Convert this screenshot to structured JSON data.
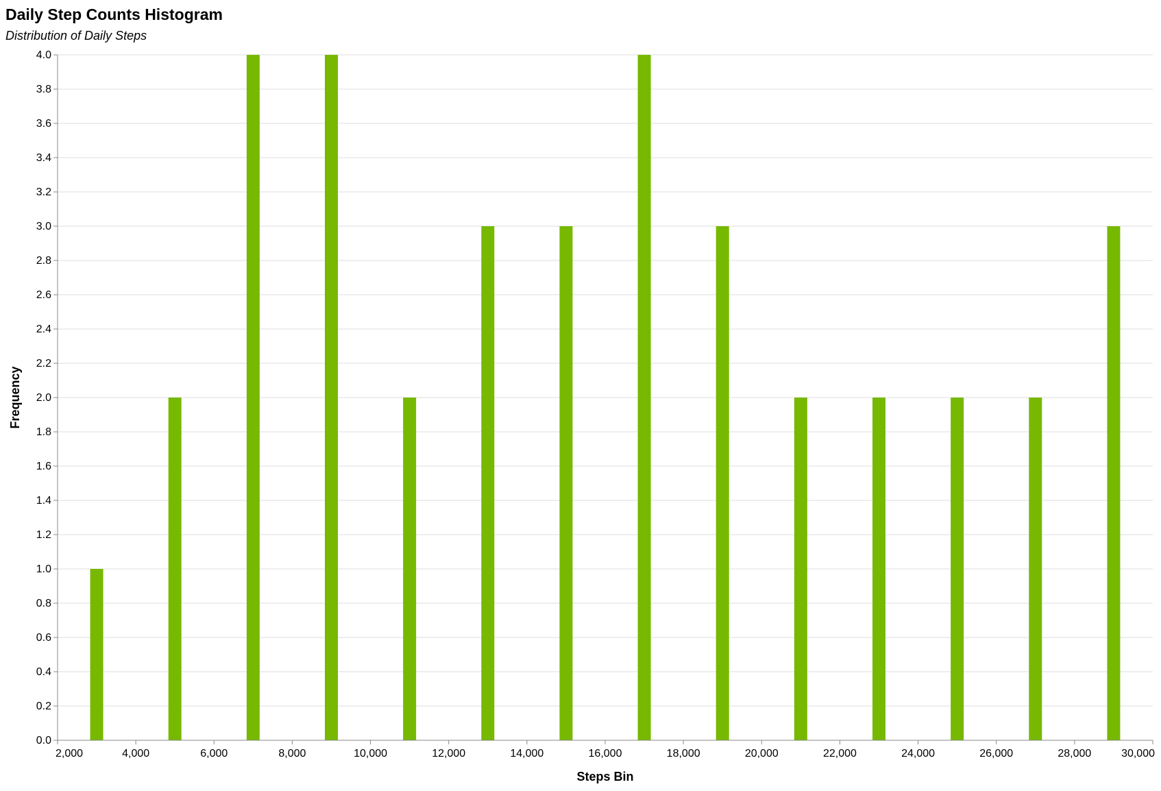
{
  "chart_data": {
    "type": "bar",
    "title": "Daily Step Counts Histogram",
    "subtitle": "Distribution of Daily Steps",
    "xlabel": "Steps Bin",
    "ylabel": "Frequency",
    "xlim": [
      2000,
      30000
    ],
    "ylim": [
      0,
      4
    ],
    "grid": true,
    "bar_color": "#76b900",
    "x_ticks": [
      2000,
      4000,
      6000,
      8000,
      10000,
      12000,
      14000,
      16000,
      18000,
      20000,
      22000,
      24000,
      26000,
      28000,
      30000
    ],
    "x_tick_labels": [
      "2,000",
      "4,000",
      "6,000",
      "8,000",
      "10,000",
      "12,000",
      "14,000",
      "16,000",
      "18,000",
      "20,000",
      "22,000",
      "24,000",
      "26,000",
      "28,000",
      "30,000"
    ],
    "y_ticks": [
      0,
      0.2,
      0.4,
      0.6,
      0.8,
      1.0,
      1.2,
      1.4,
      1.6,
      1.8,
      2.0,
      2.2,
      2.4,
      2.6,
      2.8,
      3.0,
      3.2,
      3.4,
      3.6,
      3.8,
      4.0
    ],
    "y_tick_labels": [
      "0.0",
      "0.2",
      "0.4",
      "0.6",
      "0.8",
      "1.0",
      "1.2",
      "1.4",
      "1.6",
      "1.8",
      "2.0",
      "2.2",
      "2.4",
      "2.6",
      "2.8",
      "3.0",
      "3.2",
      "3.4",
      "3.6",
      "3.8",
      "4.0"
    ],
    "bars": [
      {
        "x": 3000,
        "value": 1
      },
      {
        "x": 5000,
        "value": 2
      },
      {
        "x": 7000,
        "value": 4
      },
      {
        "x": 9000,
        "value": 4
      },
      {
        "x": 11000,
        "value": 2
      },
      {
        "x": 13000,
        "value": 3
      },
      {
        "x": 15000,
        "value": 3
      },
      {
        "x": 17000,
        "value": 4
      },
      {
        "x": 19000,
        "value": 3
      },
      {
        "x": 21000,
        "value": 2
      },
      {
        "x": 23000,
        "value": 2
      },
      {
        "x": 25000,
        "value": 2
      },
      {
        "x": 27000,
        "value": 2
      },
      {
        "x": 29000,
        "value": 3
      }
    ]
  }
}
